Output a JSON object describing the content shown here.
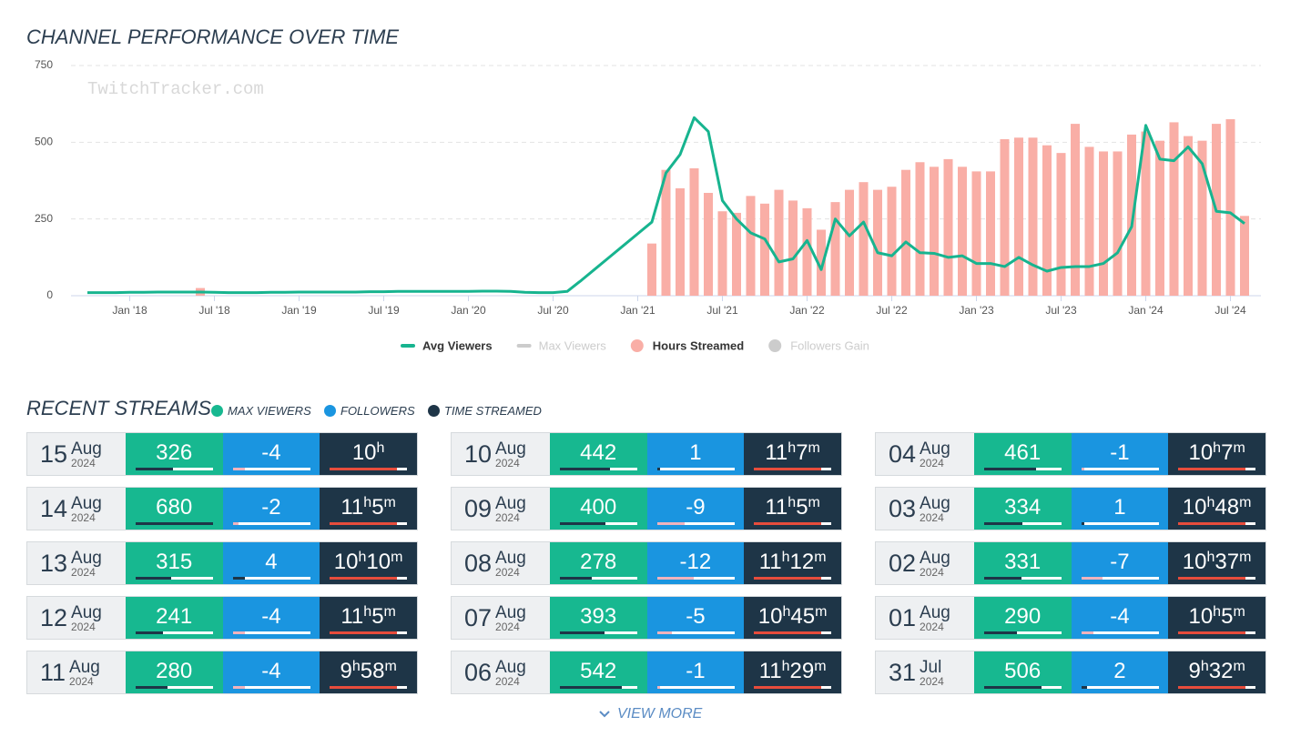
{
  "chart_data": {
    "type": "line",
    "title": "CHANNEL PERFORMANCE OVER TIME",
    "watermark": "TwitchTracker.com",
    "x": [
      "2017-10",
      "2017-11",
      "2017-12",
      "2018-01",
      "2018-02",
      "2018-03",
      "2018-04",
      "2018-05",
      "2018-06",
      "2018-07",
      "2018-08",
      "2018-09",
      "2018-10",
      "2018-11",
      "2018-12",
      "2019-01",
      "2019-02",
      "2019-03",
      "2019-04",
      "2019-05",
      "2019-06",
      "2019-07",
      "2019-08",
      "2019-09",
      "2019-10",
      "2019-11",
      "2019-12",
      "2020-01",
      "2020-02",
      "2020-03",
      "2020-04",
      "2020-05",
      "2020-06",
      "2020-07",
      "2020-08",
      "2020-09",
      "2020-10",
      "2020-11",
      "2020-12",
      "2021-01",
      "2021-02",
      "2021-03",
      "2021-04",
      "2021-05",
      "2021-06",
      "2021-07",
      "2021-08",
      "2021-09",
      "2021-10",
      "2021-11",
      "2021-12",
      "2022-01",
      "2022-02",
      "2022-03",
      "2022-04",
      "2022-05",
      "2022-06",
      "2022-07",
      "2022-08",
      "2022-09",
      "2022-10",
      "2022-11",
      "2022-12",
      "2023-01",
      "2023-02",
      "2023-03",
      "2023-04",
      "2023-05",
      "2023-06",
      "2023-07",
      "2023-08",
      "2023-09",
      "2023-10",
      "2023-11",
      "2023-12",
      "2024-01",
      "2024-02",
      "2024-03",
      "2024-04",
      "2024-05",
      "2024-06",
      "2024-07",
      "2024-08"
    ],
    "xlim": [
      "2017-10",
      "2024-08"
    ],
    "xticks": [
      {
        "value": "2018-01",
        "label": "Jan '18"
      },
      {
        "value": "2018-07",
        "label": "Jul '18"
      },
      {
        "value": "2019-01",
        "label": "Jan '19"
      },
      {
        "value": "2019-07",
        "label": "Jul '19"
      },
      {
        "value": "2020-01",
        "label": "Jan '20"
      },
      {
        "value": "2020-07",
        "label": "Jul '20"
      },
      {
        "value": "2021-01",
        "label": "Jan '21"
      },
      {
        "value": "2021-07",
        "label": "Jul '21"
      },
      {
        "value": "2022-01",
        "label": "Jan '22"
      },
      {
        "value": "2022-07",
        "label": "Jul '22"
      },
      {
        "value": "2023-01",
        "label": "Jan '23"
      },
      {
        "value": "2023-07",
        "label": "Jul '23"
      },
      {
        "value": "2024-01",
        "label": "Jan '24"
      },
      {
        "value": "2024-07",
        "label": "Jul '24"
      }
    ],
    "ylim": [
      0,
      750
    ],
    "yticks": [
      0,
      250,
      500,
      750
    ],
    "grid": true,
    "series": [
      {
        "name": "Avg Viewers",
        "color": "#17b48f",
        "kind": "line",
        "values": [
          10,
          10,
          10,
          11,
          11,
          12,
          12,
          12,
          12,
          11,
          10,
          10,
          10,
          11,
          11,
          12,
          12,
          12,
          12,
          12,
          13,
          13,
          14,
          14,
          14,
          14,
          14,
          14,
          15,
          15,
          14,
          11,
          10,
          10,
          14,
          50,
          88,
          126,
          164,
          202,
          240,
          400,
          460,
          580,
          535,
          310,
          250,
          205,
          185,
          110,
          120,
          180,
          85,
          250,
          195,
          240,
          140,
          130,
          175,
          140,
          138,
          125,
          130,
          105,
          105,
          95,
          125,
          100,
          80,
          92,
          95,
          95,
          105,
          140,
          225,
          555,
          445,
          440,
          485,
          430,
          275,
          270,
          235
        ]
      },
      {
        "name": "Hours Streamed",
        "color": "#f9aea6",
        "kind": "bar",
        "values": [
          null,
          null,
          null,
          null,
          null,
          null,
          null,
          null,
          25,
          null,
          null,
          null,
          null,
          null,
          null,
          null,
          null,
          null,
          null,
          null,
          null,
          null,
          null,
          null,
          null,
          null,
          null,
          null,
          null,
          null,
          null,
          null,
          null,
          null,
          null,
          null,
          null,
          null,
          null,
          null,
          170,
          410,
          350,
          415,
          335,
          275,
          270,
          325,
          300,
          345,
          310,
          285,
          215,
          305,
          345,
          370,
          345,
          355,
          410,
          435,
          420,
          445,
          420,
          405,
          405,
          510,
          515,
          515,
          490,
          465,
          560,
          485,
          470,
          470,
          525,
          535,
          505,
          565,
          520,
          505,
          560,
          575,
          260
        ]
      }
    ],
    "hidden_series": [
      {
        "name": "Max Viewers",
        "color": "#cccccc"
      },
      {
        "name": "Followers Gain",
        "color": "#cccccc"
      }
    ]
  },
  "recent_streams": {
    "title": "RECENT STREAMS",
    "legend": [
      "MAX VIEWERS",
      "FOLLOWERS",
      "TIME STREAMED"
    ],
    "view_more": "VIEW MORE",
    "streams": [
      {
        "day": "15",
        "month": "Aug",
        "year": "2024",
        "max_viewers": 326,
        "followers": -4,
        "time": "10h"
      },
      {
        "day": "14",
        "month": "Aug",
        "year": "2024",
        "max_viewers": 680,
        "followers": -2,
        "time": "11h5m"
      },
      {
        "day": "13",
        "month": "Aug",
        "year": "2024",
        "max_viewers": 315,
        "followers": 4,
        "time": "10h10m"
      },
      {
        "day": "12",
        "month": "Aug",
        "year": "2024",
        "max_viewers": 241,
        "followers": -4,
        "time": "11h5m"
      },
      {
        "day": "11",
        "month": "Aug",
        "year": "2024",
        "max_viewers": 280,
        "followers": -4,
        "time": "9h58m"
      },
      {
        "day": "10",
        "month": "Aug",
        "year": "2024",
        "max_viewers": 442,
        "followers": 1,
        "time": "11h7m"
      },
      {
        "day": "09",
        "month": "Aug",
        "year": "2024",
        "max_viewers": 400,
        "followers": -9,
        "time": "11h5m"
      },
      {
        "day": "08",
        "month": "Aug",
        "year": "2024",
        "max_viewers": 278,
        "followers": -12,
        "time": "11h12m"
      },
      {
        "day": "07",
        "month": "Aug",
        "year": "2024",
        "max_viewers": 393,
        "followers": -5,
        "time": "10h45m"
      },
      {
        "day": "06",
        "month": "Aug",
        "year": "2024",
        "max_viewers": 542,
        "followers": -1,
        "time": "11h29m"
      },
      {
        "day": "04",
        "month": "Aug",
        "year": "2024",
        "max_viewers": 461,
        "followers": -1,
        "time": "10h7m"
      },
      {
        "day": "03",
        "month": "Aug",
        "year": "2024",
        "max_viewers": 334,
        "followers": 1,
        "time": "10h48m"
      },
      {
        "day": "02",
        "month": "Aug",
        "year": "2024",
        "max_viewers": 331,
        "followers": -7,
        "time": "10h37m"
      },
      {
        "day": "01",
        "month": "Aug",
        "year": "2024",
        "max_viewers": 290,
        "followers": -4,
        "time": "10h5m"
      },
      {
        "day": "31",
        "month": "Jul",
        "year": "2024",
        "max_viewers": 506,
        "followers": 2,
        "time": "9h32m"
      }
    ]
  }
}
